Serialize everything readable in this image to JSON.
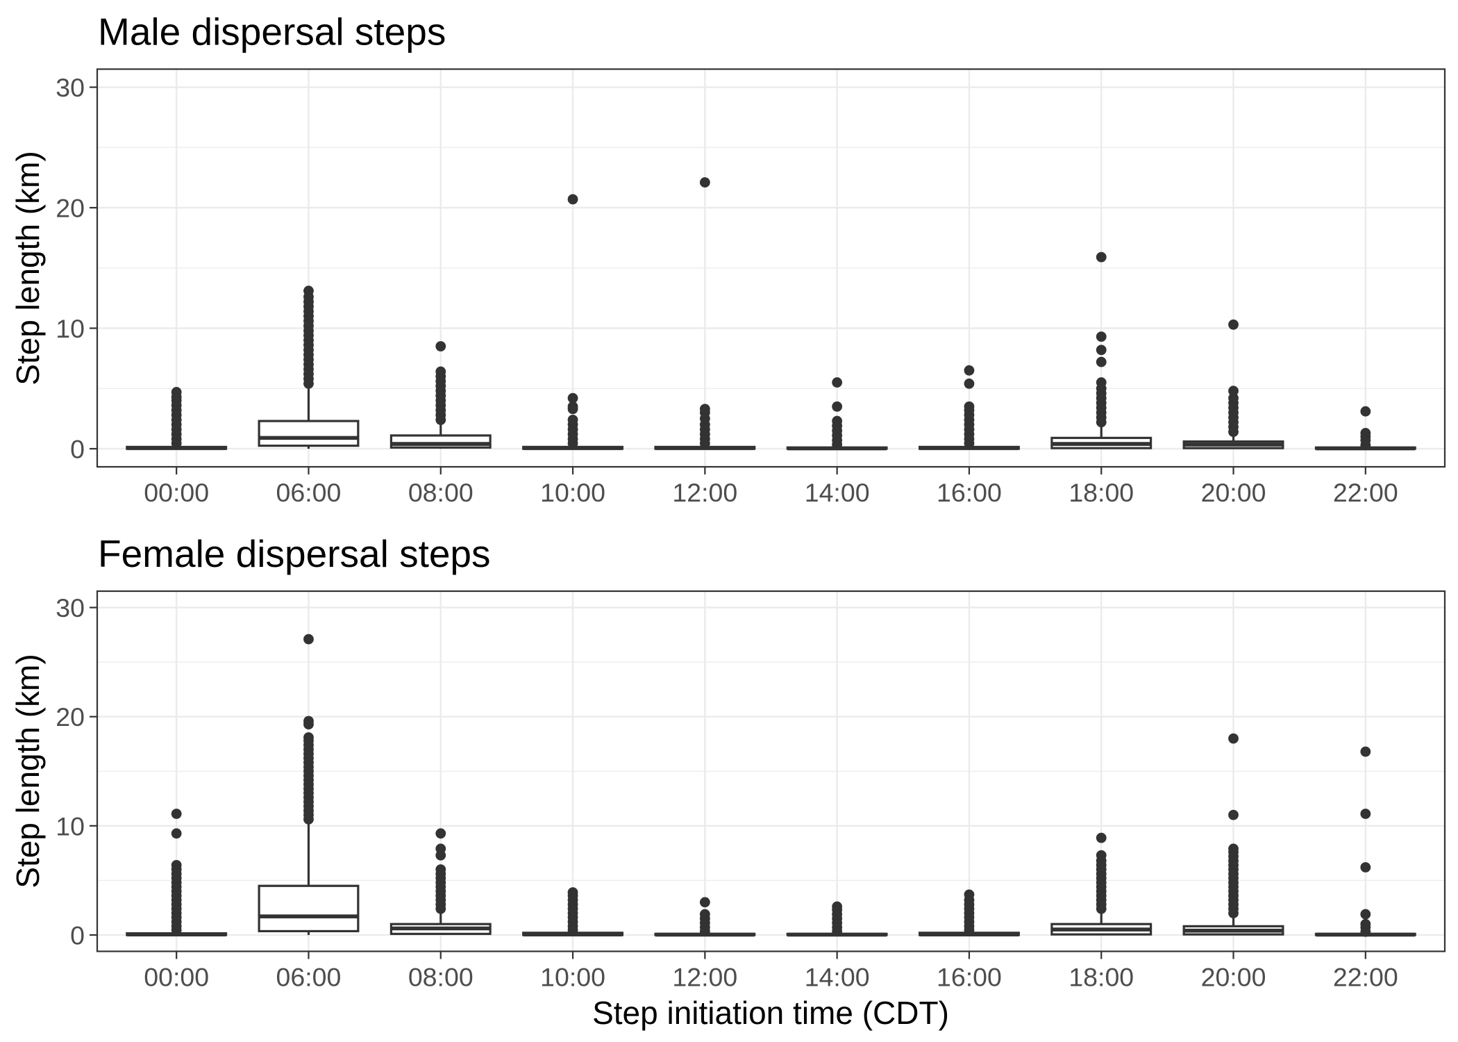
{
  "colors": {
    "box_line": "#333333",
    "box_fill": "#ffffff",
    "outlier": "#333333",
    "grid_major": "#ebebeb",
    "grid_minor": "#ebebeb",
    "panel_border": "#333333",
    "axis_tick": "#333333"
  },
  "chart_data": [
    {
      "type": "boxplot",
      "title": "Male dispersal steps",
      "xlabel": "",
      "ylabel": "Step length (km)",
      "categories": [
        "00:00",
        "06:00",
        "08:00",
        "10:00",
        "12:00",
        "14:00",
        "16:00",
        "18:00",
        "20:00",
        "22:00"
      ],
      "ylim": [
        -1.5,
        31.5
      ],
      "yticks": [
        0,
        10,
        20,
        30
      ],
      "grid": true,
      "boxes": [
        {
          "whisker_low": 0,
          "q1": 0,
          "median": 0.05,
          "q3": 0.15,
          "whisker_high": 0.3,
          "outliers": [
            0.45,
            0.8,
            1.2,
            1.6,
            2.0,
            2.4,
            2.8,
            3.2,
            3.6,
            4.0,
            4.3,
            4.7
          ]
        },
        {
          "whisker_low": 0,
          "q1": 0.25,
          "median": 0.9,
          "q3": 2.3,
          "whisker_high": 5.2,
          "outliers": [
            5.4,
            5.8,
            6.2,
            6.6,
            7.0,
            7.4,
            7.8,
            8.2,
            8.6,
            9.0,
            9.4,
            9.8,
            10.2,
            10.6,
            11.0,
            11.4,
            11.8,
            12.2,
            12.6,
            13.1
          ]
        },
        {
          "whisker_low": 0,
          "q1": 0.1,
          "median": 0.4,
          "q3": 1.1,
          "whisker_high": 2.2,
          "outliers": [
            2.4,
            2.8,
            3.2,
            3.6,
            4.0,
            4.4,
            4.8,
            5.2,
            5.6,
            6.0,
            6.4,
            8.5
          ]
        },
        {
          "whisker_low": 0,
          "q1": 0,
          "median": 0.05,
          "q3": 0.15,
          "whisker_high": 0.3,
          "outliers": [
            0.45,
            0.8,
            1.2,
            1.6,
            2.0,
            2.4,
            3.3,
            3.5,
            4.2,
            20.7
          ]
        },
        {
          "whisker_low": 0,
          "q1": 0,
          "median": 0.05,
          "q3": 0.15,
          "whisker_high": 0.3,
          "outliers": [
            0.45,
            0.8,
            1.2,
            1.6,
            2.0,
            2.5,
            3.0,
            3.3,
            22.1
          ]
        },
        {
          "whisker_low": 0,
          "q1": 0,
          "median": 0.03,
          "q3": 0.1,
          "whisker_high": 0.2,
          "outliers": [
            0.35,
            0.7,
            1.1,
            1.5,
            1.9,
            2.3,
            3.5,
            5.5
          ]
        },
        {
          "whisker_low": 0,
          "q1": 0,
          "median": 0.05,
          "q3": 0.15,
          "whisker_high": 0.3,
          "outliers": [
            0.45,
            0.8,
            1.2,
            1.6,
            2.0,
            2.4,
            2.8,
            3.2,
            3.5,
            5.4,
            6.5
          ]
        },
        {
          "whisker_low": 0,
          "q1": 0.05,
          "median": 0.4,
          "q3": 0.9,
          "whisker_high": 2.0,
          "outliers": [
            2.2,
            2.6,
            3.0,
            3.4,
            3.8,
            4.2,
            4.6,
            5.0,
            5.5,
            7.2,
            8.2,
            9.3,
            15.9
          ]
        },
        {
          "whisker_low": 0,
          "q1": 0.05,
          "median": 0.35,
          "q3": 0.6,
          "whisker_high": 1.2,
          "outliers": [
            1.4,
            1.8,
            2.2,
            2.6,
            3.0,
            3.4,
            3.8,
            4.2,
            4.8,
            10.3
          ]
        },
        {
          "whisker_low": 0,
          "q1": 0,
          "median": 0.03,
          "q3": 0.1,
          "whisker_high": 0.15,
          "outliers": [
            0.3,
            0.7,
            1.0,
            1.3,
            3.1
          ]
        }
      ]
    },
    {
      "type": "boxplot",
      "title": "Female dispersal steps",
      "xlabel": "Step initiation time (CDT)",
      "ylabel": "Step length (km)",
      "categories": [
        "00:00",
        "06:00",
        "08:00",
        "10:00",
        "12:00",
        "14:00",
        "16:00",
        "18:00",
        "20:00",
        "22:00"
      ],
      "ylim": [
        -1.5,
        31.5
      ],
      "yticks": [
        0,
        10,
        20,
        30
      ],
      "grid": true,
      "boxes": [
        {
          "whisker_low": 0,
          "q1": 0,
          "median": 0.05,
          "q3": 0.15,
          "whisker_high": 0.3,
          "outliers": [
            0.45,
            0.8,
            1.2,
            1.6,
            2.0,
            2.4,
            2.8,
            3.2,
            3.6,
            4.0,
            4.4,
            4.8,
            5.2,
            5.6,
            6.0,
            6.4,
            9.3,
            11.1
          ]
        },
        {
          "whisker_low": 0,
          "q1": 0.35,
          "median": 1.7,
          "q3": 4.5,
          "whisker_high": 10.4,
          "outliers": [
            10.6,
            11.0,
            11.4,
            11.8,
            12.2,
            12.6,
            13.0,
            13.4,
            13.8,
            14.2,
            14.6,
            15.0,
            15.4,
            15.8,
            16.2,
            16.6,
            17.0,
            17.4,
            17.8,
            18.1,
            19.3,
            19.6,
            27.1
          ]
        },
        {
          "whisker_low": 0,
          "q1": 0.1,
          "median": 0.6,
          "q3": 1.0,
          "whisker_high": 2.2,
          "outliers": [
            2.4,
            2.8,
            3.2,
            3.6,
            4.0,
            4.4,
            4.8,
            5.2,
            5.6,
            6.0,
            7.3,
            7.9,
            9.3
          ]
        },
        {
          "whisker_low": 0,
          "q1": 0,
          "median": 0.05,
          "q3": 0.2,
          "whisker_high": 0.3,
          "outliers": [
            0.45,
            0.8,
            1.2,
            1.6,
            2.0,
            2.4,
            2.8,
            3.2,
            3.6,
            3.9
          ]
        },
        {
          "whisker_low": 0,
          "q1": 0,
          "median": 0.03,
          "q3": 0.1,
          "whisker_high": 0.2,
          "outliers": [
            0.35,
            0.7,
            1.1,
            1.5,
            1.9,
            3.0
          ]
        },
        {
          "whisker_low": 0,
          "q1": 0,
          "median": 0.03,
          "q3": 0.1,
          "whisker_high": 0.2,
          "outliers": [
            0.35,
            0.7,
            1.1,
            1.5,
            1.9,
            2.3,
            2.6
          ]
        },
        {
          "whisker_low": 0,
          "q1": 0,
          "median": 0.05,
          "q3": 0.2,
          "whisker_high": 0.3,
          "outliers": [
            0.45,
            0.8,
            1.2,
            1.6,
            2.0,
            2.4,
            2.8,
            3.2,
            3.7
          ]
        },
        {
          "whisker_low": 0,
          "q1": 0.05,
          "median": 0.5,
          "q3": 1.0,
          "whisker_high": 2.2,
          "outliers": [
            2.4,
            2.8,
            3.2,
            3.6,
            4.0,
            4.4,
            4.8,
            5.2,
            5.6,
            6.0,
            6.4,
            6.8,
            7.3,
            8.9
          ]
        },
        {
          "whisker_low": 0,
          "q1": 0.05,
          "median": 0.4,
          "q3": 0.8,
          "whisker_high": 1.8,
          "outliers": [
            2.0,
            2.4,
            2.8,
            3.2,
            3.6,
            4.0,
            4.4,
            4.8,
            5.2,
            5.6,
            6.0,
            6.4,
            6.8,
            7.2,
            7.6,
            7.9,
            11.0,
            18.0
          ]
        },
        {
          "whisker_low": 0,
          "q1": 0,
          "median": 0.03,
          "q3": 0.1,
          "whisker_high": 0.15,
          "outliers": [
            0.3,
            0.7,
            1.0,
            1.9,
            6.2,
            11.1,
            16.8
          ]
        }
      ]
    }
  ]
}
